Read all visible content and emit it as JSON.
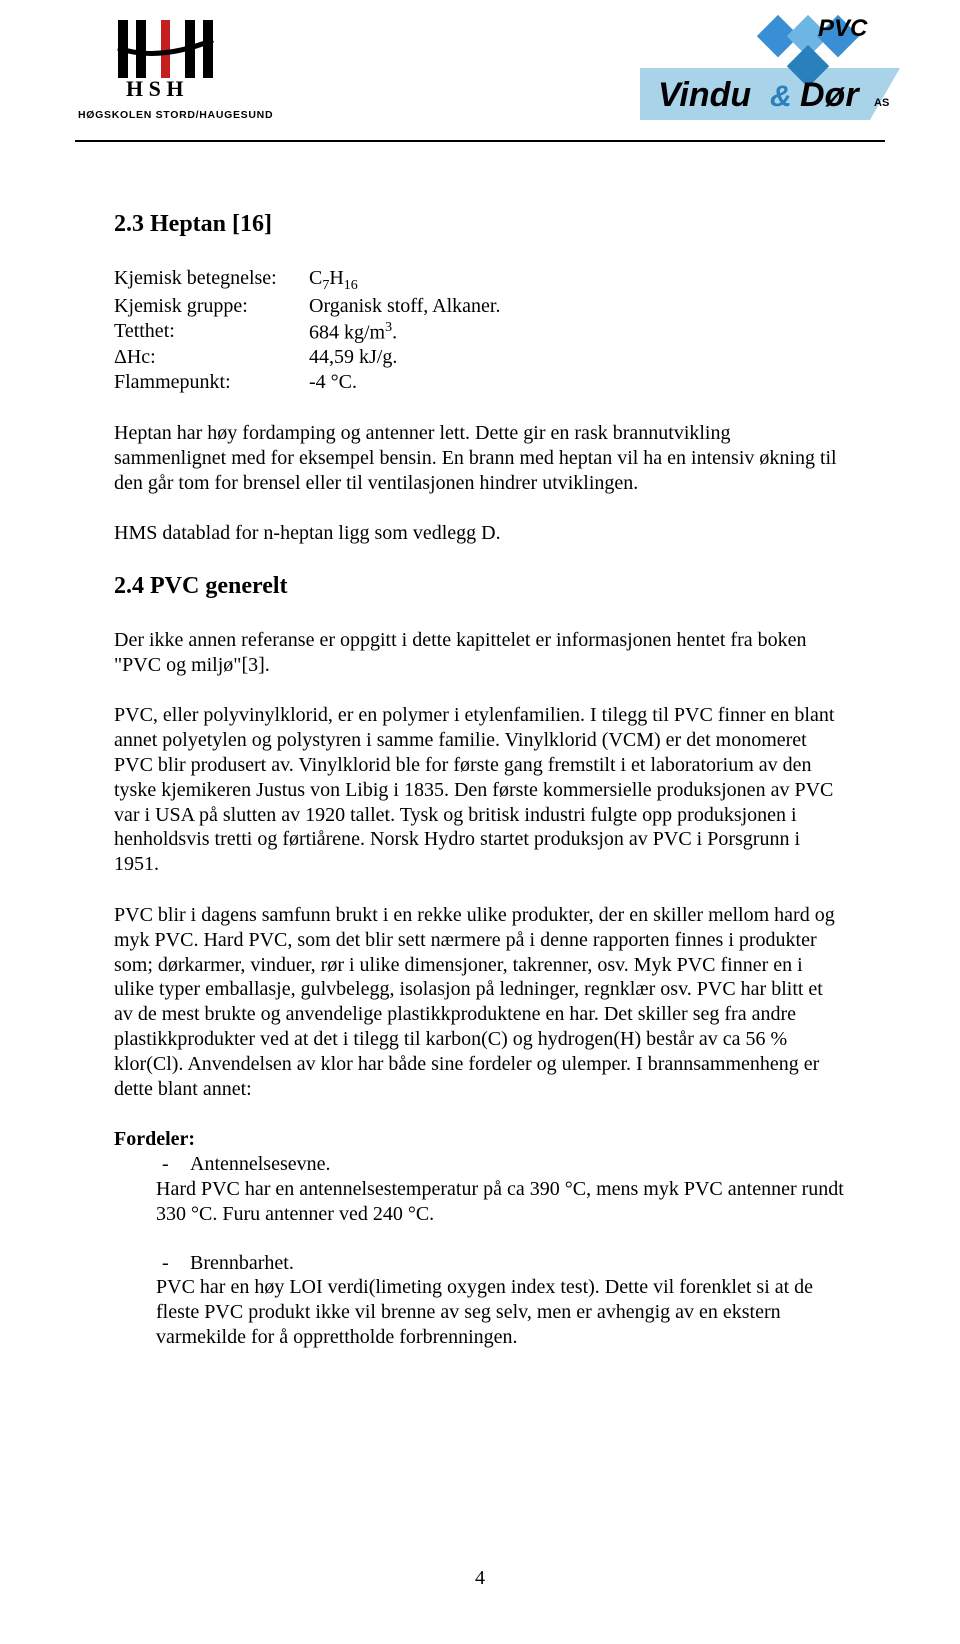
{
  "header": {
    "left_logo": {
      "text_top": "H S H",
      "text_bottom": "HØGSKOLEN STORD/HAUGESUND",
      "bar_colors": [
        "#000000",
        "#000000",
        "#cc0000",
        "#000000"
      ],
      "text_color": "#000000"
    },
    "right_logo": {
      "pvc_text": "PVC",
      "brand_prefix": "Vindu",
      "brand_amp": "&",
      "brand_suffix": "Dør",
      "brand_as": "AS",
      "diamond_color": "#3a8fd4",
      "band_color": "#a9d3e8",
      "text_color": "#000000",
      "amp_color": "#2a7fbd"
    }
  },
  "section1": {
    "heading": "2.3 Heptan [16]",
    "props": [
      {
        "label": "Kjemisk betegnelse:",
        "value_html": "C<sub>7</sub>H<sub>16</sub>"
      },
      {
        "label": "Kjemisk gruppe:",
        "value_html": "Organisk stoff, Alkaner."
      },
      {
        "label": "Tetthet:",
        "value_html": "684 kg/m<sup>3</sup>."
      },
      {
        "label": "ΔHc:",
        "value_html": "44,59 kJ/g."
      },
      {
        "label": "Flammepunkt:",
        "value_html": "-4 °C."
      }
    ],
    "para1": "Heptan har høy fordamping og antenner lett. Dette gir en rask brannutvikling sammenlignet med for eksempel bensin. En brann med heptan vil ha en intensiv økning til den går tom for brensel eller til ventilasjonen hindrer utviklingen.",
    "para2": "HMS datablad for n-heptan ligg som vedlegg D."
  },
  "section2": {
    "heading": "2.4 PVC generelt",
    "para1": "Der ikke annen referanse er oppgitt i dette kapittelet er informasjonen hentet fra boken \"PVC og miljø\"[3].",
    "para2": "PVC, eller polyvinylklorid, er en polymer i etylenfamilien. I tilegg til PVC finner en blant annet polyetylen og polystyren i samme familie. Vinylklorid (VCM) er det monomeret PVC blir produsert av. Vinylklorid ble for første gang fremstilt i et laboratorium av den tyske kjemikeren Justus von Libig i 1835. Den første kommersielle produksjonen av PVC var i USA på slutten av 1920 tallet. Tysk og britisk industri fulgte opp produksjonen i henholdsvis tretti og førtiårene. Norsk Hydro startet produksjon av PVC i Porsgrunn i 1951.",
    "para3": "PVC blir i dagens samfunn brukt i en rekke ulike produkter, der en skiller mellom hard og myk PVC. Hard PVC, som det blir sett nærmere på i denne rapporten finnes i produkter som; dørkarmer, vinduer, rør i ulike dimensjoner, takrenner, osv. Myk PVC finner en i ulike typer emballasje, gulvbelegg, isolasjon på ledninger, regnklær osv. PVC har blitt et av de mest brukte og anvendelige plastikkproduktene en har. Det skiller seg fra andre plastikkprodukter ved at det i tilegg til karbon(C) og hydrogen(H) består av ca 56 % klor(Cl). Anvendelsen av klor har både sine fordeler og ulemper. I brannsammenheng er dette blant annet:",
    "list_heading": "Fordeler:",
    "item1_title": "Antennelsesevne.",
    "item1_body": "Hard PVC har en antennelsestemperatur på ca 390 °C, mens myk PVC antenner rundt 330 °C. Furu antenner ved 240 °C.",
    "item2_title": "Brennbarhet.",
    "item2_body": "PVC har en høy LOI verdi(limeting oxygen index test). Dette vil forenklet si at de fleste PVC produkt ikke vil brenne av seg selv, men er avhengig av en ekstern varmekilde for å opprettholde forbrenningen."
  },
  "page_number": "4"
}
